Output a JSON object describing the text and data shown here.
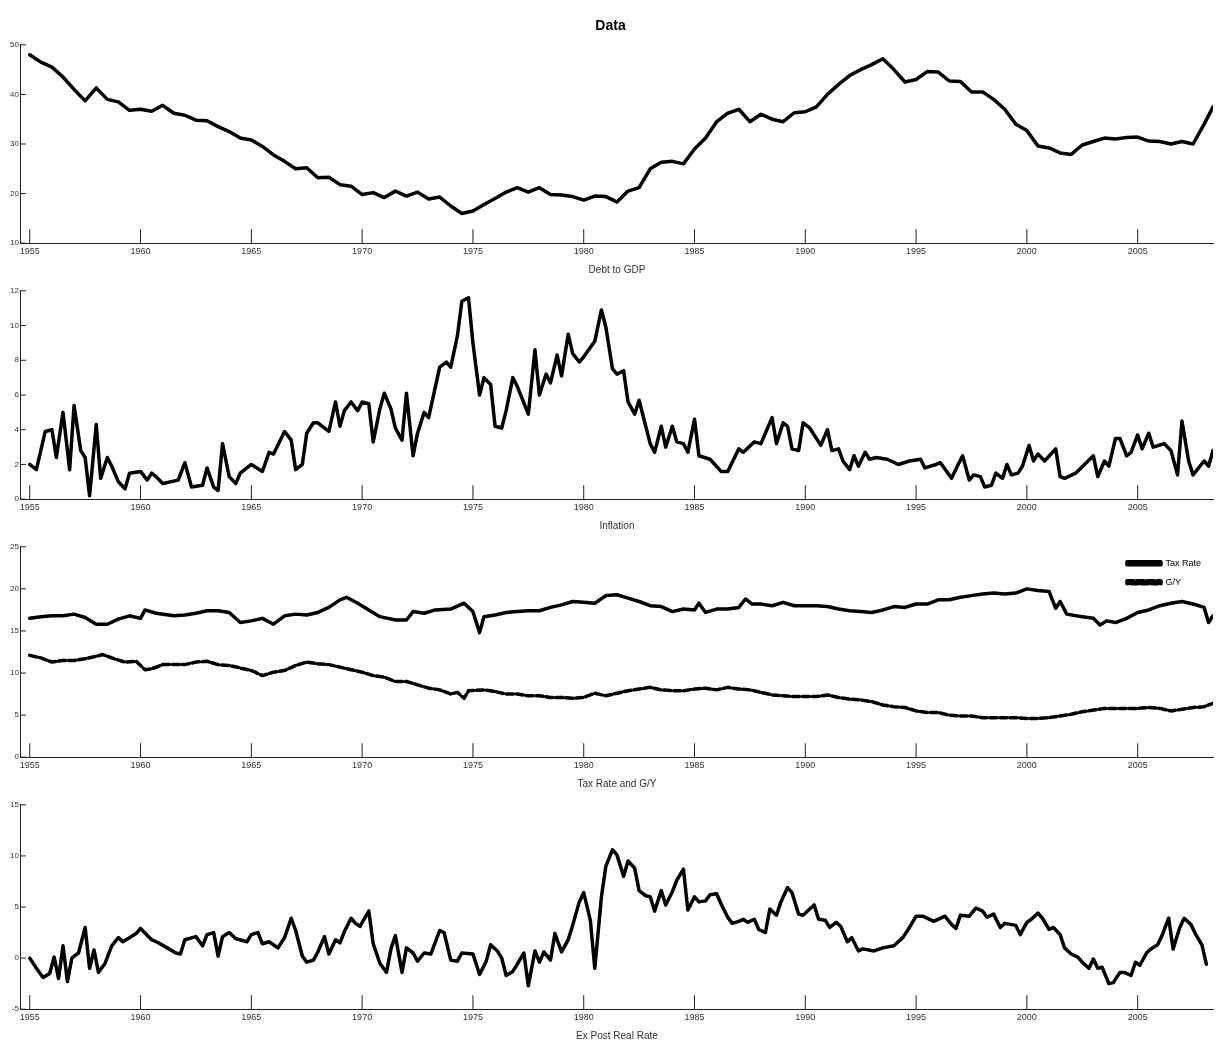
{
  "chart_data": [
    {
      "type": "line",
      "title": "Data",
      "xlabel": "Debt to GDP",
      "xlim": [
        1954.6,
        2008.4
      ],
      "xticks": [
        1955,
        1960,
        1965,
        1970,
        1975,
        1980,
        1985,
        1990,
        1995,
        2000,
        2005
      ],
      "ylim": [
        10,
        50
      ],
      "yticks": [
        10,
        20,
        30,
        40,
        50
      ],
      "marker": "none",
      "line_style": "solid",
      "series": [
        {
          "color": "#000000",
          "x": [
            1955,
            1955.5,
            1956,
            1956.5,
            1957,
            1957.5,
            1958,
            1958.5,
            1959,
            1959.5,
            1960,
            1960.5,
            1961,
            1961.5,
            1962,
            1962.5,
            1963,
            1963.5,
            1964,
            1964.5,
            1965,
            1965.5,
            1966,
            1966.5,
            1967,
            1967.5,
            1968,
            1968.5,
            1969,
            1969.5,
            1970,
            1970.5,
            1971,
            1971.5,
            1972,
            1972.5,
            1973,
            1973.5,
            1974,
            1974.5,
            1975,
            1975.5,
            1976,
            1976.5,
            1977,
            1977.5,
            1978,
            1978.5,
            1979,
            1979.5,
            1980,
            1980.5,
            1981,
            1981.5,
            1982,
            1982.5,
            1983,
            1983.5,
            1984,
            1984.5,
            1985,
            1985.5,
            1986,
            1986.5,
            1987,
            1987.5,
            1988,
            1988.5,
            1989,
            1989.5,
            1990,
            1990.5,
            1991,
            1991.5,
            1992,
            1992.5,
            1993,
            1993.5,
            1994,
            1994.5,
            1995,
            1995.5,
            1996,
            1996.5,
            1997,
            1997.5,
            1998,
            1998.5,
            1999,
            1999.5,
            2000,
            2000.5,
            2001,
            2001.5,
            2002,
            2002.5,
            2003,
            2003.5,
            2004,
            2004.5,
            2005,
            2005.5,
            2006,
            2006.5,
            2007,
            2007.5,
            2008,
            2008.4
          ],
          "values": [
            48,
            46.5,
            45.5,
            43.5,
            41,
            38.7,
            41.3,
            39,
            38.5,
            36.8,
            37,
            36.6,
            37.8,
            36.2,
            35.8,
            34.8,
            34.7,
            33.5,
            32.5,
            31.2,
            30.8,
            29.5,
            27.8,
            26.5,
            25,
            25.2,
            23.2,
            23.3,
            21.8,
            21.5,
            19.8,
            20.2,
            19.2,
            20.5,
            19.5,
            20.3,
            18.9,
            19.3,
            17.5,
            16,
            16.5,
            17.8,
            19,
            20.3,
            21.2,
            20.3,
            21.2,
            19.8,
            19.7,
            19.4,
            18.7,
            19.5,
            19.4,
            18.3,
            20.5,
            21.2,
            25,
            26.3,
            26.5,
            26,
            29,
            31.2,
            34.5,
            36.2,
            37,
            34.5,
            36,
            35,
            34.5,
            36.3,
            36.5,
            37.5,
            40,
            42,
            43.8,
            45,
            46,
            47.2,
            45,
            42.5,
            43,
            44.6,
            44.5,
            42.7,
            42.6,
            40.5,
            40.5,
            39,
            37,
            34,
            32.7,
            29.6,
            29.2,
            28.2,
            27.9,
            29.8,
            30.5,
            31.2,
            31,
            31.3,
            31.4,
            30.6,
            30.5,
            30,
            30.5,
            30,
            34,
            37.5
          ]
        }
      ]
    },
    {
      "type": "line",
      "xlabel": "Inflation",
      "xlim": [
        1954.6,
        2008.4
      ],
      "xticks": [
        1955,
        1960,
        1965,
        1970,
        1975,
        1980,
        1985,
        1990,
        1995,
        2000,
        2005
      ],
      "ylim": [
        0,
        12
      ],
      "yticks": [
        0,
        2,
        4,
        6,
        8,
        10,
        12
      ],
      "marker": "none",
      "line_style": "solid",
      "series": [
        {
          "color": "#000000",
          "x": [
            1955.0,
            1955.3,
            1955.7,
            1956.0,
            1956.2,
            1956.5,
            1956.8,
            1957.0,
            1957.3,
            1957.5,
            1957.7,
            1958.0,
            1958.2,
            1958.5,
            1958.7,
            1959.0,
            1959.3,
            1959.5,
            1960.0,
            1960.3,
            1960.5,
            1960.7,
            1961.0,
            1961.7,
            1962.0,
            1962.3,
            1962.8,
            1963.0,
            1963.3,
            1963.5,
            1963.7,
            1964.0,
            1964.3,
            1964.5,
            1965.0,
            1965.5,
            1965.8,
            1966.0,
            1966.5,
            1966.8,
            1967.0,
            1967.3,
            1967.5,
            1967.8,
            1968.0,
            1968.5,
            1968.8,
            1969.0,
            1969.2,
            1969.5,
            1969.8,
            1970.0,
            1970.3,
            1970.5,
            1970.8,
            1971.0,
            1971.3,
            1971.5,
            1971.8,
            1972.0,
            1972.3,
            1972.5,
            1972.8,
            1973.0,
            1973.5,
            1973.8,
            1974.0,
            1974.3,
            1974.5,
            1974.8,
            1975.0,
            1975.3,
            1975.5,
            1975.8,
            1976.0,
            1976.3,
            1976.5,
            1976.8,
            1977.0,
            1977.5,
            1977.8,
            1978.0,
            1978.3,
            1978.5,
            1978.8,
            1979.0,
            1979.3,
            1979.5,
            1979.8,
            1980.0,
            1980.5,
            1980.8,
            1981.0,
            1981.3,
            1981.5,
            1981.8,
            1982.0,
            1982.3,
            1982.5,
            1983.0,
            1983.2,
            1983.5,
            1983.7,
            1984.0,
            1984.2,
            1984.5,
            1984.7,
            1985.0,
            1985.2,
            1985.7,
            1986.2,
            1986.5,
            1987.0,
            1987.2,
            1987.7,
            1988.0,
            1988.5,
            1988.7,
            1989.0,
            1989.2,
            1989.4,
            1989.7,
            1989.9,
            1990.2,
            1990.7,
            1991.0,
            1991.2,
            1991.5,
            1991.7,
            1992.0,
            1992.2,
            1992.4,
            1992.7,
            1992.9,
            1993.2,
            1993.7,
            1994.2,
            1994.7,
            1995.2,
            1995.4,
            1995.9,
            1996.1,
            1996.6,
            1996.9,
            1997.1,
            1997.4,
            1997.6,
            1997.9,
            1998.1,
            1998.4,
            1998.6,
            1998.9,
            1999.1,
            1999.3,
            1999.6,
            1999.8,
            2000.1,
            2000.3,
            2000.5,
            2000.8,
            2001.3,
            2001.5,
            2001.7,
            2002.2,
            2003.0,
            2003.2,
            2003.5,
            2003.7,
            2004.0,
            2004.2,
            2004.5,
            2004.7,
            2005.0,
            2005.2,
            2005.5,
            2005.7,
            2006.2,
            2006.5,
            2006.8,
            2007.0,
            2007.3,
            2007.5,
            2008.0,
            2008.2,
            2008.4
          ],
          "values": [
            2.0,
            1.7,
            3.9,
            4.0,
            2.4,
            5.0,
            1.7,
            5.4,
            2.8,
            2.4,
            0.2,
            4.3,
            1.2,
            2.4,
            1.9,
            1.0,
            0.6,
            1.5,
            1.6,
            1.1,
            1.5,
            1.3,
            0.9,
            1.1,
            2.1,
            0.7,
            0.8,
            1.8,
            0.7,
            0.5,
            3.2,
            1.3,
            0.9,
            1.5,
            2.0,
            1.6,
            2.7,
            2.6,
            3.9,
            3.4,
            1.7,
            2.0,
            3.8,
            4.4,
            4.4,
            3.9,
            5.6,
            4.2,
            5.1,
            5.6,
            5.1,
            5.6,
            5.5,
            3.3,
            5.2,
            6.1,
            5.2,
            4.1,
            3.4,
            6.1,
            2.5,
            3.8,
            5.0,
            4.7,
            7.6,
            7.9,
            7.6,
            9.4,
            11.4,
            11.6,
            9.0,
            6.0,
            7.0,
            6.6,
            4.2,
            4.1,
            5.1,
            7.0,
            6.5,
            4.9,
            8.6,
            6.0,
            7.2,
            6.7,
            8.3,
            7.1,
            9.5,
            8.4,
            7.9,
            8.2,
            9.1,
            10.9,
            9.9,
            7.5,
            7.2,
            7.4,
            5.6,
            4.9,
            5.7,
            3.2,
            2.7,
            4.2,
            3.0,
            4.2,
            3.3,
            3.2,
            2.7,
            4.6,
            2.5,
            2.3,
            1.6,
            1.6,
            2.9,
            2.7,
            3.3,
            3.2,
            4.7,
            3.2,
            4.4,
            4.2,
            2.9,
            2.8,
            4.4,
            4.1,
            3.1,
            4.0,
            2.8,
            2.9,
            2.2,
            1.7,
            2.5,
            1.9,
            2.7,
            2.3,
            2.4,
            2.3,
            2.0,
            2.2,
            2.3,
            1.8,
            2.0,
            2.1,
            1.2,
            2.0,
            2.5,
            1.1,
            1.4,
            1.3,
            0.7,
            0.8,
            1.5,
            1.2,
            2.0,
            1.4,
            1.5,
            1.9,
            3.1,
            2.2,
            2.6,
            2.2,
            2.9,
            1.3,
            1.2,
            1.5,
            2.5,
            1.3,
            2.2,
            1.9,
            3.5,
            3.5,
            2.5,
            2.7,
            3.7,
            2.9,
            3.8,
            3.0,
            3.2,
            2.8,
            1.4,
            4.5,
            2.2,
            1.4,
            2.2,
            1.9,
            2.8
          ]
        }
      ]
    },
    {
      "type": "line",
      "xlabel": "Tax Rate and G/Y",
      "xlim": [
        1954.6,
        2008.4
      ],
      "xticks": [
        1955,
        1960,
        1965,
        1970,
        1975,
        1980,
        1985,
        1990,
        1995,
        2000,
        2005
      ],
      "ylim": [
        0,
        25
      ],
      "yticks": [
        0,
        5,
        10,
        15,
        20,
        25
      ],
      "marker": "none",
      "legend": "top right",
      "series": [
        {
          "name": "Tax Rate",
          "color": "#000000",
          "line_style": "solid",
          "x": [
            1955,
            1955.5,
            1956,
            1956.5,
            1957,
            1957.5,
            1958,
            1958.5,
            1959,
            1959.5,
            1960,
            1960.2,
            1960.7,
            1961.5,
            1962,
            1962.5,
            1963,
            1963.5,
            1964,
            1964.5,
            1965,
            1965.5,
            1966,
            1966.5,
            1967,
            1967.5,
            1968,
            1968.5,
            1969,
            1969.3,
            1969.8,
            1970.3,
            1970.8,
            1971.5,
            1972,
            1972.3,
            1972.8,
            1973.3,
            1974,
            1974.6,
            1975,
            1975.3,
            1975.5,
            1976,
            1976.5,
            1977,
            1977.5,
            1978,
            1978.5,
            1979,
            1979.5,
            1980,
            1980.5,
            1981,
            1981.5,
            1982,
            1982.5,
            1983,
            1983.5,
            1984,
            1984.5,
            1985,
            1985.2,
            1985.5,
            1986,
            1986.5,
            1987,
            1987.3,
            1987.6,
            1988,
            1988.5,
            1989,
            1989.5,
            1990,
            1990.5,
            1991,
            1991.5,
            1992,
            1992.5,
            1993,
            1993.5,
            1994,
            1994.5,
            1995,
            1995.5,
            1996,
            1996.5,
            1997,
            1997.5,
            1998,
            1998.5,
            1999,
            1999.5,
            2000,
            2000.5,
            2001,
            2001.3,
            2001.5,
            2001.8,
            2002.5,
            2003,
            2003.3,
            2003.6,
            2004,
            2004.5,
            2005,
            2005.5,
            2006,
            2006.5,
            2007,
            2007.5,
            2008,
            2008.2,
            2008.4
          ],
          "values": [
            16.5,
            16.7,
            16.8,
            16.8,
            17.0,
            16.6,
            15.8,
            15.8,
            16.4,
            16.8,
            16.5,
            17.5,
            17.1,
            16.8,
            16.9,
            17.1,
            17.4,
            17.4,
            17.2,
            16.0,
            16.2,
            16.5,
            15.8,
            16.8,
            17.0,
            16.9,
            17.2,
            17.8,
            18.7,
            19.0,
            18.3,
            17.5,
            16.7,
            16.3,
            16.3,
            17.3,
            17.1,
            17.5,
            17.6,
            18.3,
            17.3,
            14.8,
            16.7,
            16.9,
            17.2,
            17.3,
            17.4,
            17.4,
            17.8,
            18.1,
            18.5,
            18.4,
            18.3,
            19.2,
            19.3,
            18.9,
            18.5,
            18.0,
            17.9,
            17.3,
            17.6,
            17.5,
            18.3,
            17.2,
            17.6,
            17.6,
            17.8,
            18.8,
            18.2,
            18.2,
            18.0,
            18.4,
            18.0,
            18.0,
            18.0,
            17.9,
            17.6,
            17.4,
            17.3,
            17.2,
            17.5,
            17.9,
            17.8,
            18.2,
            18.2,
            18.7,
            18.7,
            19.0,
            19.2,
            19.4,
            19.5,
            19.4,
            19.5,
            20.0,
            19.8,
            19.7,
            17.7,
            18.5,
            17.0,
            16.7,
            16.5,
            15.7,
            16.2,
            16.0,
            16.5,
            17.2,
            17.5,
            18.0,
            18.3,
            18.5,
            18.2,
            17.8,
            16.0,
            16.8
          ]
        },
        {
          "name": "G/Y",
          "color": "#000000",
          "line_style": "dashed",
          "x": [
            1955,
            1955.5,
            1956,
            1956.5,
            1957,
            1957.5,
            1958,
            1958.3,
            1958.8,
            1959.3,
            1959.8,
            1960.2,
            1960.5,
            1961,
            1961.5,
            1962,
            1962.5,
            1963,
            1963.5,
            1964,
            1964.5,
            1965,
            1965.5,
            1966,
            1966.5,
            1967,
            1967.5,
            1968,
            1968.5,
            1969,
            1969.5,
            1970,
            1970.5,
            1971,
            1971.5,
            1972,
            1972.5,
            1973,
            1973.5,
            1974,
            1974.3,
            1974.6,
            1974.8,
            1975.5,
            1976,
            1976.5,
            1977,
            1977.5,
            1978,
            1978.5,
            1979,
            1979.5,
            1980,
            1980.5,
            1981,
            1981.5,
            1982,
            1982.5,
            1983,
            1983.5,
            1984,
            1984.5,
            1985,
            1985.5,
            1986,
            1986.5,
            1987,
            1987.5,
            1988,
            1988.5,
            1989,
            1989.5,
            1990,
            1990.5,
            1991,
            1991.5,
            1992,
            1992.5,
            1993,
            1993.5,
            1994,
            1994.5,
            1995,
            1995.5,
            1996,
            1996.5,
            1997,
            1997.5,
            1998,
            1998.5,
            1999,
            1999.5,
            2000,
            2000.5,
            2001,
            2001.5,
            2002,
            2002.5,
            2003,
            2003.5,
            2004,
            2004.5,
            2005,
            2005.5,
            2006,
            2006.5,
            2007,
            2007.5,
            2008,
            2008.4
          ],
          "values": [
            12.1,
            11.8,
            11.3,
            11.5,
            11.5,
            11.7,
            12.0,
            12.2,
            11.7,
            11.3,
            11.4,
            10.4,
            10.5,
            11.0,
            11.0,
            11.0,
            11.3,
            11.4,
            11.0,
            10.9,
            10.6,
            10.3,
            9.7,
            10.1,
            10.3,
            10.9,
            11.3,
            11.1,
            11.0,
            10.7,
            10.4,
            10.1,
            9.7,
            9.5,
            9.0,
            9.0,
            8.6,
            8.2,
            8.0,
            7.5,
            7.7,
            7.0,
            7.9,
            8.0,
            7.8,
            7.5,
            7.5,
            7.3,
            7.3,
            7.1,
            7.1,
            7.0,
            7.1,
            7.6,
            7.3,
            7.6,
            7.9,
            8.1,
            8.3,
            8.0,
            7.9,
            7.9,
            8.1,
            8.2,
            8.0,
            8.3,
            8.1,
            8.0,
            7.7,
            7.4,
            7.3,
            7.2,
            7.2,
            7.2,
            7.4,
            7.1,
            6.9,
            6.8,
            6.6,
            6.2,
            6.0,
            5.9,
            5.5,
            5.3,
            5.3,
            5.0,
            4.9,
            4.9,
            4.7,
            4.7,
            4.7,
            4.7,
            4.6,
            4.6,
            4.7,
            4.9,
            5.1,
            5.4,
            5.6,
            5.8,
            5.8,
            5.8,
            5.8,
            5.9,
            5.8,
            5.5,
            5.7,
            5.9,
            6.0,
            6.4
          ]
        }
      ]
    },
    {
      "type": "line",
      "xlabel": "Ex Post Real Rate",
      "xlim": [
        1954.6,
        2008.4
      ],
      "xticks": [
        1955,
        1960,
        1965,
        1970,
        1975,
        1980,
        1985,
        1990,
        1995,
        2000,
        2005
      ],
      "ylim": [
        -5,
        15
      ],
      "yticks": [
        -5,
        0,
        5,
        10,
        15
      ],
      "marker": "none",
      "line_style": "solid",
      "series": [
        {
          "color": "#000000",
          "x": [
            1955,
            1955.3,
            1955.6,
            1955.9,
            1956.1,
            1956.3,
            1956.5,
            1956.7,
            1956.9,
            1957.2,
            1957.5,
            1957.7,
            1957.9,
            1958.1,
            1958.4,
            1958.7,
            1959,
            1959.2,
            1959.5,
            1959.8,
            1960,
            1960.5,
            1960.8,
            1961.2,
            1961.6,
            1961.8,
            1962,
            1962.5,
            1962.8,
            1963,
            1963.3,
            1963.5,
            1963.7,
            1964,
            1964.3,
            1964.8,
            1965,
            1965.3,
            1965.5,
            1965.8,
            1966.2,
            1966.5,
            1966.8,
            1967,
            1967.3,
            1967.5,
            1967.8,
            1968,
            1968.3,
            1968.5,
            1968.8,
            1969,
            1969.2,
            1969.5,
            1969.7,
            1969.9,
            1970.3,
            1970.5,
            1970.8,
            1971.1,
            1971.3,
            1971.5,
            1971.8,
            1972.0,
            1972.3,
            1972.5,
            1972.8,
            1973.1,
            1973.5,
            1973.7,
            1974.0,
            1974.3,
            1974.5,
            1975.0,
            1975.3,
            1975.6,
            1975.8,
            1976.1,
            1976.3,
            1976.5,
            1976.8,
            1977.0,
            1977.3,
            1977.5,
            1977.8,
            1978.0,
            1978.2,
            1978.5,
            1978.7,
            1979.0,
            1979.3,
            1979.5,
            1979.8,
            1980.0,
            1980.3,
            1980.5,
            1980.8,
            1981.0,
            1981.3,
            1981.5,
            1981.8,
            1982.0,
            1982.3,
            1982.5,
            1982.8,
            1983.0,
            1983.2,
            1983.5,
            1983.7,
            1984.0,
            1984.2,
            1984.5,
            1984.7,
            1985.0,
            1985.2,
            1985.5,
            1985.7,
            1986.0,
            1986.2,
            1986.5,
            1986.7,
            1987.0,
            1987.2,
            1987.4,
            1987.7,
            1987.9,
            1988.2,
            1988.4,
            1988.7,
            1988.9,
            1989.2,
            1989.4,
            1989.7,
            1989.9,
            1990.2,
            1990.4,
            1990.6,
            1990.9,
            1991.1,
            1991.4,
            1991.6,
            1991.9,
            1992.1,
            1992.4,
            1992.6,
            1993.1,
            1993.5,
            1994.0,
            1994.4,
            1994.7,
            1995.0,
            1995.3,
            1995.8,
            1996.3,
            1996.6,
            1996.8,
            1997.0,
            1997.4,
            1997.7,
            1998.0,
            1998.2,
            1998.5,
            1998.8,
            1999.0,
            1999.5,
            1999.7,
            2000.0,
            2000.2,
            2000.5,
            2000.7,
            2001.0,
            2001.2,
            2001.5,
            2001.7,
            2002.0,
            2002.3,
            2002.5,
            2002.8,
            2003.0,
            2003.2,
            2003.4,
            2003.7,
            2003.9,
            2004.2,
            2004.4,
            2004.7,
            2004.9,
            2005.1,
            2005.4,
            2005.6,
            2005.9,
            2006.1,
            2006.4,
            2006.6,
            2006.9,
            2007.1,
            2007.4,
            2007.6,
            2007.9,
            2008.1
          ],
          "values": [
            0.0,
            -1.0,
            -1.9,
            -1.5,
            0.1,
            -2.0,
            1.2,
            -2.3,
            0.0,
            0.5,
            3.0,
            -1.0,
            0.8,
            -1.4,
            -0.5,
            1.2,
            2.0,
            1.6,
            2.0,
            2.4,
            2.9,
            1.8,
            1.5,
            1.0,
            0.5,
            0.4,
            1.8,
            2.1,
            1.2,
            2.3,
            2.5,
            0.2,
            2.1,
            2.5,
            1.9,
            1.6,
            2.3,
            2.5,
            1.4,
            1.6,
            1.0,
            2.0,
            3.9,
            2.7,
            0.2,
            -0.4,
            -0.2,
            0.6,
            2.1,
            0.4,
            1.8,
            1.5,
            2.6,
            3.9,
            3.4,
            3.1,
            4.6,
            1.4,
            -0.5,
            -1.4,
            0.9,
            2.2,
            -1.4,
            1.0,
            0.5,
            -0.3,
            0.5,
            0.4,
            2.7,
            2.5,
            -0.2,
            -0.3,
            0.5,
            0.4,
            -1.6,
            -0.3,
            1.3,
            0.7,
            0.0,
            -1.7,
            -1.3,
            -0.6,
            0.5,
            -2.7,
            0.7,
            -0.4,
            0.6,
            -0.2,
            2.4,
            0.6,
            1.8,
            3.2,
            5.5,
            6.4,
            3.7,
            -1.0,
            6.0,
            9.0,
            10.6,
            10.1,
            8.0,
            9.5,
            8.8,
            6.6,
            6.1,
            6.0,
            4.6,
            6.6,
            5.2,
            6.5,
            7.6,
            8.7,
            4.7,
            6.0,
            5.5,
            5.6,
            6.2,
            6.3,
            5.3,
            4.0,
            3.4,
            3.6,
            3.8,
            3.5,
            3.8,
            2.8,
            2.5,
            4.8,
            4.2,
            5.5,
            6.9,
            6.4,
            4.3,
            4.2,
            4.8,
            5.2,
            3.8,
            3.7,
            3.0,
            3.5,
            3.1,
            1.6,
            2.0,
            0.7,
            0.9,
            0.7,
            1.0,
            1.2,
            2.0,
            3.0,
            4.1,
            4.1,
            3.6,
            4.1,
            3.3,
            2.9,
            4.2,
            4.1,
            4.9,
            4.6,
            4.0,
            4.3,
            3.0,
            3.4,
            3.2,
            2.3,
            3.5,
            3.8,
            4.4,
            3.9,
            2.8,
            3.0,
            2.3,
            1.0,
            0.4,
            0.1,
            -0.4,
            -1.0,
            -0.1,
            -1.0,
            -0.9,
            -2.5,
            -2.4,
            -1.4,
            -1.4,
            -1.7,
            -0.4,
            -0.7,
            0.5,
            0.9,
            1.3,
            2.2,
            3.9,
            0.9,
            3.0,
            3.9,
            3.3,
            2.4,
            1.3,
            -0.6
          ]
        }
      ]
    }
  ]
}
